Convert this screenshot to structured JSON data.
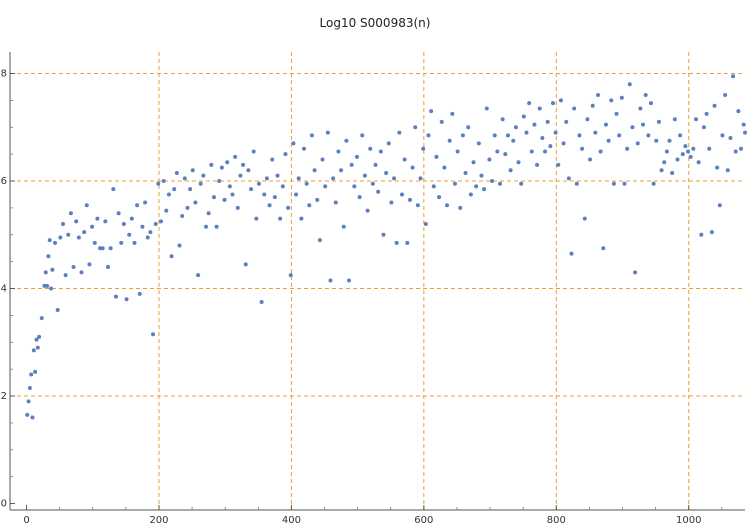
{
  "chart_data": {
    "type": "scatter",
    "title": "Log10 S000983(n)",
    "xlabel": "",
    "ylabel": "",
    "xlim": [
      -25,
      1085
    ],
    "ylim": [
      -0.12,
      8.4
    ],
    "x_ticks": [
      0,
      200,
      400,
      600,
      800,
      1000
    ],
    "y_ticks": [
      0,
      2,
      4,
      6,
      8
    ],
    "x_tick_labels": [
      "0",
      "200",
      "400",
      "600",
      "800",
      "1000"
    ],
    "y_tick_labels": [
      "0",
      "2",
      "4",
      "6",
      "8"
    ],
    "grid": "dashed orange at major ticks",
    "grid_color": "#e8a030",
    "marker_color": "#5b7fc0",
    "series": [
      {
        "points": [
          [
            1,
            1.65
          ],
          [
            3,
            1.9
          ],
          [
            5,
            2.15
          ],
          [
            7,
            2.4
          ],
          [
            9,
            1.6
          ],
          [
            11,
            2.85
          ],
          [
            13,
            2.45
          ],
          [
            15,
            3.05
          ],
          [
            17,
            2.9
          ],
          [
            19,
            3.1
          ],
          [
            23,
            3.45
          ],
          [
            27,
            4.05
          ],
          [
            29,
            4.3
          ],
          [
            31,
            4.05
          ],
          [
            33,
            4.6
          ],
          [
            35,
            4.9
          ],
          [
            37,
            4.0
          ],
          [
            39,
            4.35
          ],
          [
            43,
            4.85
          ],
          [
            47,
            3.6
          ],
          [
            51,
            4.95
          ],
          [
            55,
            5.2
          ],
          [
            59,
            4.25
          ],
          [
            63,
            5.0
          ],
          [
            67,
            5.4
          ],
          [
            71,
            4.4
          ],
          [
            75,
            5.25
          ],
          [
            79,
            4.95
          ],
          [
            83,
            4.3
          ],
          [
            87,
            5.05
          ],
          [
            91,
            5.55
          ],
          [
            95,
            4.45
          ],
          [
            99,
            5.15
          ],
          [
            103,
            4.85
          ],
          [
            107,
            5.3
          ],
          [
            111,
            4.75
          ],
          [
            115,
            4.75
          ],
          [
            119,
            5.25
          ],
          [
            123,
            4.4
          ],
          [
            127,
            4.75
          ],
          [
            131,
            5.85
          ],
          [
            135,
            3.85
          ],
          [
            139,
            5.4
          ],
          [
            143,
            4.85
          ],
          [
            147,
            5.2
          ],
          [
            151,
            3.8
          ],
          [
            155,
            5.0
          ],
          [
            159,
            5.3
          ],
          [
            163,
            4.85
          ],
          [
            167,
            5.55
          ],
          [
            171,
            3.9
          ],
          [
            175,
            5.15
          ],
          [
            179,
            5.6
          ],
          [
            183,
            4.95
          ],
          [
            187,
            5.05
          ],
          [
            191,
            3.15
          ],
          [
            195,
            5.2
          ],
          [
            199,
            5.95
          ],
          [
            203,
            5.25
          ],
          [
            207,
            6.0
          ],
          [
            211,
            5.45
          ],
          [
            215,
            5.75
          ],
          [
            219,
            4.6
          ],
          [
            223,
            5.85
          ],
          [
            227,
            6.15
          ],
          [
            231,
            4.8
          ],
          [
            235,
            5.35
          ],
          [
            239,
            6.05
          ],
          [
            243,
            5.5
          ],
          [
            247,
            5.85
          ],
          [
            251,
            6.2
          ],
          [
            255,
            5.6
          ],
          [
            259,
            4.25
          ],
          [
            263,
            5.95
          ],
          [
            267,
            6.1
          ],
          [
            271,
            5.15
          ],
          [
            275,
            5.4
          ],
          [
            279,
            6.3
          ],
          [
            283,
            5.7
          ],
          [
            287,
            5.15
          ],
          [
            291,
            6.0
          ],
          [
            295,
            6.25
          ],
          [
            299,
            5.65
          ],
          [
            303,
            6.35
          ],
          [
            307,
            5.9
          ],
          [
            311,
            5.75
          ],
          [
            315,
            6.45
          ],
          [
            319,
            5.5
          ],
          [
            323,
            6.1
          ],
          [
            327,
            6.3
          ],
          [
            331,
            4.45
          ],
          [
            335,
            6.2
          ],
          [
            339,
            5.85
          ],
          [
            343,
            6.55
          ],
          [
            347,
            5.3
          ],
          [
            351,
            5.95
          ],
          [
            355,
            3.75
          ],
          [
            359,
            5.75
          ],
          [
            363,
            6.05
          ],
          [
            367,
            5.55
          ],
          [
            371,
            6.4
          ],
          [
            375,
            5.7
          ],
          [
            379,
            6.1
          ],
          [
            383,
            5.3
          ],
          [
            387,
            5.9
          ],
          [
            391,
            6.5
          ],
          [
            395,
            5.5
          ],
          [
            399,
            4.25
          ],
          [
            403,
            6.7
          ],
          [
            407,
            5.75
          ],
          [
            411,
            6.05
          ],
          [
            415,
            5.3
          ],
          [
            419,
            6.6
          ],
          [
            423,
            5.95
          ],
          [
            427,
            5.55
          ],
          [
            431,
            6.85
          ],
          [
            435,
            6.2
          ],
          [
            439,
            5.65
          ],
          [
            443,
            4.9
          ],
          [
            447,
            6.4
          ],
          [
            451,
            5.9
          ],
          [
            455,
            6.9
          ],
          [
            459,
            4.15
          ],
          [
            463,
            6.05
          ],
          [
            467,
            5.6
          ],
          [
            471,
            6.55
          ],
          [
            475,
            6.2
          ],
          [
            479,
            5.15
          ],
          [
            483,
            6.75
          ],
          [
            487,
            4.15
          ],
          [
            491,
            6.3
          ],
          [
            495,
            5.9
          ],
          [
            499,
            6.45
          ],
          [
            503,
            5.7
          ],
          [
            507,
            6.85
          ],
          [
            511,
            6.1
          ],
          [
            515,
            5.45
          ],
          [
            519,
            6.6
          ],
          [
            523,
            5.95
          ],
          [
            527,
            6.3
          ],
          [
            531,
            5.8
          ],
          [
            535,
            6.55
          ],
          [
            539,
            5.0
          ],
          [
            543,
            6.15
          ],
          [
            547,
            6.7
          ],
          [
            551,
            5.6
          ],
          [
            555,
            6.05
          ],
          [
            559,
            4.85
          ],
          [
            563,
            6.9
          ],
          [
            567,
            5.75
          ],
          [
            571,
            6.4
          ],
          [
            575,
            4.85
          ],
          [
            579,
            5.65
          ],
          [
            583,
            6.25
          ],
          [
            587,
            7.0
          ],
          [
            591,
            5.55
          ],
          [
            595,
            6.05
          ],
          [
            599,
            6.6
          ],
          [
            603,
            5.2
          ],
          [
            607,
            6.85
          ],
          [
            611,
            7.3
          ],
          [
            615,
            5.9
          ],
          [
            619,
            6.45
          ],
          [
            623,
            5.7
          ],
          [
            627,
            7.1
          ],
          [
            631,
            6.25
          ],
          [
            635,
            5.55
          ],
          [
            639,
            6.75
          ],
          [
            643,
            7.25
          ],
          [
            647,
            5.95
          ],
          [
            651,
            6.55
          ],
          [
            655,
            5.5
          ],
          [
            659,
            6.85
          ],
          [
            663,
            6.15
          ],
          [
            667,
            7.0
          ],
          [
            671,
            5.75
          ],
          [
            675,
            6.35
          ],
          [
            679,
            5.9
          ],
          [
            683,
            6.7
          ],
          [
            687,
            6.1
          ],
          [
            691,
            5.85
          ],
          [
            695,
            7.35
          ],
          [
            699,
            6.4
          ],
          [
            703,
            6.0
          ],
          [
            707,
            6.85
          ],
          [
            711,
            6.55
          ],
          [
            715,
            5.95
          ],
          [
            719,
            7.15
          ],
          [
            723,
            6.5
          ],
          [
            727,
            6.85
          ],
          [
            731,
            6.2
          ],
          [
            735,
            6.75
          ],
          [
            739,
            7.0
          ],
          [
            743,
            6.35
          ],
          [
            747,
            5.95
          ],
          [
            751,
            7.2
          ],
          [
            755,
            6.9
          ],
          [
            759,
            7.45
          ],
          [
            763,
            6.55
          ],
          [
            767,
            7.05
          ],
          [
            771,
            6.3
          ],
          [
            775,
            7.35
          ],
          [
            779,
            6.8
          ],
          [
            783,
            6.55
          ],
          [
            787,
            7.1
          ],
          [
            791,
            6.65
          ],
          [
            795,
            7.45
          ],
          [
            799,
            6.9
          ],
          [
            803,
            6.3
          ],
          [
            807,
            7.5
          ],
          [
            811,
            6.7
          ],
          [
            815,
            7.1
          ],
          [
            819,
            6.05
          ],
          [
            823,
            4.65
          ],
          [
            827,
            7.35
          ],
          [
            831,
            5.95
          ],
          [
            835,
            6.85
          ],
          [
            839,
            6.6
          ],
          [
            843,
            5.3
          ],
          [
            847,
            7.15
          ],
          [
            851,
            6.4
          ],
          [
            855,
            7.4
          ],
          [
            859,
            6.9
          ],
          [
            863,
            7.6
          ],
          [
            867,
            6.55
          ],
          [
            871,
            4.75
          ],
          [
            875,
            7.05
          ],
          [
            879,
            6.75
          ],
          [
            883,
            7.5
          ],
          [
            887,
            5.95
          ],
          [
            891,
            7.25
          ],
          [
            895,
            6.85
          ],
          [
            899,
            7.55
          ],
          [
            903,
            5.95
          ],
          [
            907,
            6.6
          ],
          [
            911,
            7.8
          ],
          [
            915,
            7.0
          ],
          [
            919,
            4.3
          ],
          [
            923,
            6.7
          ],
          [
            927,
            7.35
          ],
          [
            931,
            7.05
          ],
          [
            935,
            7.6
          ],
          [
            939,
            6.85
          ],
          [
            943,
            7.45
          ],
          [
            947,
            5.95
          ],
          [
            951,
            6.75
          ],
          [
            955,
            7.1
          ],
          [
            959,
            6.2
          ],
          [
            963,
            6.35
          ],
          [
            967,
            6.55
          ],
          [
            971,
            6.75
          ],
          [
            975,
            6.15
          ],
          [
            979,
            7.15
          ],
          [
            983,
            6.4
          ],
          [
            987,
            6.85
          ],
          [
            991,
            6.5
          ],
          [
            995,
            6.65
          ],
          [
            999,
            6.55
          ],
          [
            1003,
            6.45
          ],
          [
            1007,
            6.6
          ],
          [
            1011,
            7.15
          ],
          [
            1015,
            6.35
          ],
          [
            1019,
            5.0
          ],
          [
            1023,
            7.0
          ],
          [
            1027,
            7.25
          ],
          [
            1031,
            6.6
          ],
          [
            1035,
            5.05
          ],
          [
            1039,
            7.4
          ],
          [
            1043,
            6.25
          ],
          [
            1047,
            5.55
          ],
          [
            1051,
            6.85
          ],
          [
            1055,
            7.6
          ],
          [
            1059,
            6.2
          ],
          [
            1063,
            6.8
          ],
          [
            1067,
            7.95
          ],
          [
            1071,
            6.55
          ],
          [
            1075,
            7.3
          ],
          [
            1079,
            6.6
          ],
          [
            1083,
            7.05
          ],
          [
            1085,
            6.9
          ]
        ]
      }
    ]
  }
}
